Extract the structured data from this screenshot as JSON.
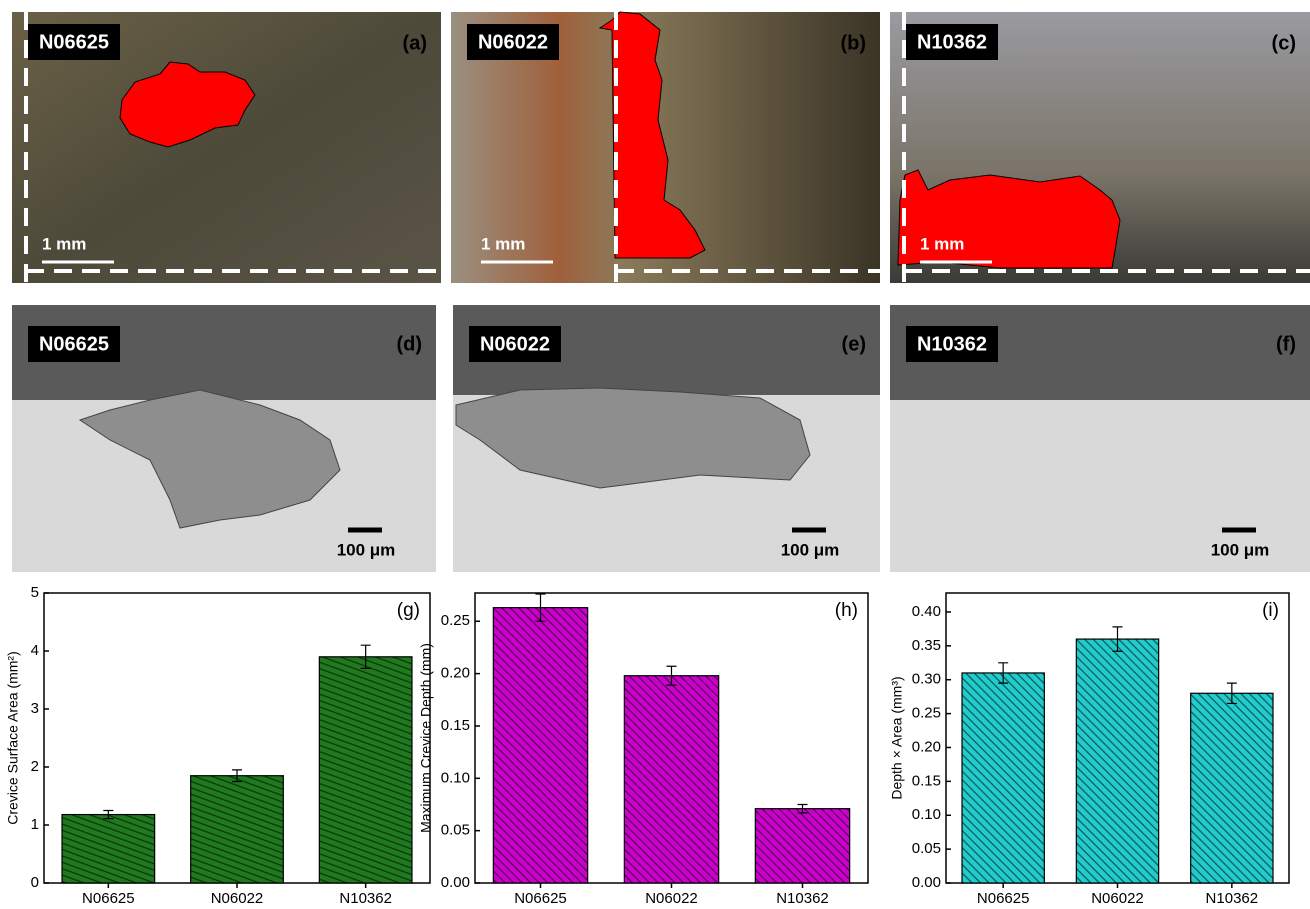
{
  "photos": [
    {
      "sample": "N06625",
      "tag": "(a)",
      "scale": "1 mm"
    },
    {
      "sample": "N06022",
      "tag": "(b)",
      "scale": "1 mm"
    },
    {
      "sample": "N10362",
      "tag": "(c)",
      "scale": "1 mm"
    }
  ],
  "micrographs": [
    {
      "sample": "N06625",
      "tag": "(d)",
      "scale": "100 μm"
    },
    {
      "sample": "N06022",
      "tag": "(e)",
      "scale": "100 μm"
    },
    {
      "sample": "N10362",
      "tag": "(f)",
      "scale": "100 μm"
    }
  ],
  "chart_data": [
    {
      "type": "bar",
      "tag": "(g)",
      "y_label": "Crevice Surface Area (mm²)",
      "categories": [
        "N06625",
        "N06022",
        "N10362"
      ],
      "values": [
        1.18,
        1.85,
        3.9
      ],
      "errors": [
        0.07,
        0.1,
        0.2
      ],
      "color": "#1f7a1f",
      "ylim": [
        0,
        5
      ],
      "yticks": [
        0,
        1,
        2,
        3,
        4,
        5
      ]
    },
    {
      "type": "bar",
      "tag": "(h)",
      "y_label": "Maximum Crevice Depth (mm)",
      "categories": [
        "N06625",
        "N06022",
        "N10362"
      ],
      "values": [
        0.263,
        0.198,
        0.071
      ],
      "errors": [
        0.013,
        0.009,
        0.004
      ],
      "color": "#cc00cc",
      "ylim": [
        0,
        0.277
      ],
      "yticks": [
        {
          "value": 0,
          "label": "0.00"
        },
        0.05,
        {
          "value": 0.1,
          "label": "0.10"
        },
        0.15,
        {
          "value": 0.2,
          "label": "0.20"
        },
        0.25
      ]
    },
    {
      "type": "bar",
      "tag": "(i)",
      "y_label": "Depth × Area (mm³)",
      "categories": [
        "N06625",
        "N06022",
        "N10362"
      ],
      "values": [
        0.31,
        0.36,
        0.28
      ],
      "errors": [
        0.015,
        0.018,
        0.015
      ],
      "color": "#22cccc",
      "ylim": [
        0,
        0.428
      ],
      "yticks": [
        {
          "value": 0,
          "label": "0.00"
        },
        0.05,
        {
          "value": 0.1,
          "label": "0.10"
        },
        0.15,
        {
          "value": 0.2,
          "label": "0.20"
        },
        0.25,
        {
          "value": 0.3,
          "label": "0.30"
        },
        0.35,
        {
          "value": 0.4,
          "label": "0.40"
        }
      ]
    }
  ]
}
